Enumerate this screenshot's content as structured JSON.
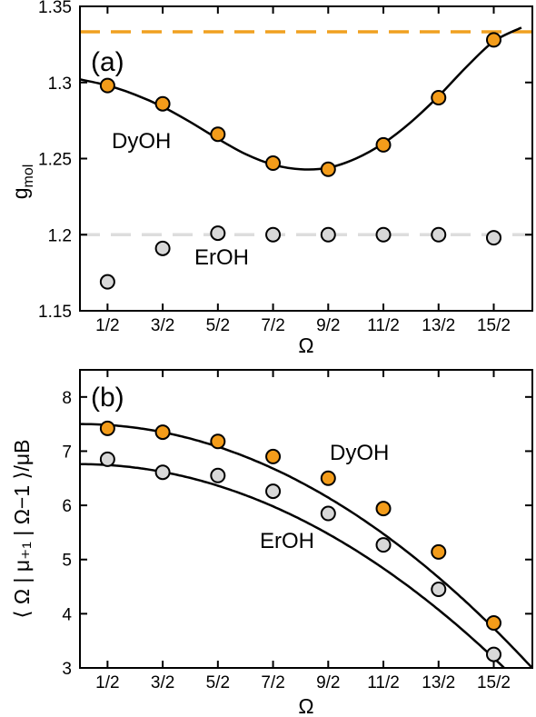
{
  "chart_data": [
    {
      "type": "scatter",
      "panel_label": "(a)",
      "xlabel": "Ω",
      "ylabel": "g",
      "ylabel_sub": "mol",
      "categories": [
        "1/2",
        "3/2",
        "5/2",
        "7/2",
        "9/2",
        "11/2",
        "13/2",
        "15/2"
      ],
      "x": [
        0.5,
        1.5,
        2.5,
        3.5,
        4.5,
        5.5,
        6.5,
        7.5
      ],
      "ylim": [
        1.15,
        1.35
      ],
      "yticks": [
        "1.15",
        "1.2",
        "1.25",
        "1.3",
        "1.35"
      ],
      "yticks_values": [
        1.15,
        1.2,
        1.25,
        1.3,
        1.35
      ],
      "reference_lines": [
        {
          "y": 1.3333,
          "color": "#F0A020",
          "style": "dashed"
        },
        {
          "y": 1.2,
          "color": "#DDDDDD",
          "style": "dashed"
        }
      ],
      "series": [
        {
          "name": "DyOH",
          "color": "#F39C1A",
          "values": [
            1.298,
            1.286,
            1.266,
            1.247,
            1.243,
            1.259,
            1.29,
            1.328
          ],
          "fit_curve": true
        },
        {
          "name": "ErOH",
          "color": "#D8D8D8",
          "values": [
            1.169,
            1.191,
            1.201,
            1.2,
            1.2,
            1.2,
            1.2,
            1.198
          ],
          "fit_curve": false
        }
      ],
      "fit_dyoh": {
        "x": [
          0.0,
          0.5,
          1.0,
          1.5,
          2.0,
          2.5,
          3.0,
          3.5,
          4.0,
          4.5,
          5.0,
          5.5,
          6.0,
          6.5,
          7.0,
          7.5,
          8.0
        ],
        "y": [
          1.302,
          1.298,
          1.292,
          1.284,
          1.274,
          1.263,
          1.253,
          1.246,
          1.243,
          1.244,
          1.25,
          1.26,
          1.274,
          1.291,
          1.31,
          1.327,
          1.336
        ]
      }
    },
    {
      "type": "scatter",
      "panel_label": "(b)",
      "xlabel": "Ω",
      "ylabel": "⟨ Ω | μ₊₁ | Ω−1 ⟩/μB",
      "categories": [
        "1/2",
        "3/2",
        "5/2",
        "7/2",
        "9/2",
        "11/2",
        "13/2",
        "15/2"
      ],
      "x": [
        0.5,
        1.5,
        2.5,
        3.5,
        4.5,
        5.5,
        6.5,
        7.5
      ],
      "ylim": [
        3,
        8.5
      ],
      "yticks": [
        "3",
        "4",
        "5",
        "6",
        "7",
        "8"
      ],
      "yticks_values": [
        3,
        4,
        5,
        6,
        7,
        8
      ],
      "series": [
        {
          "name": "DyOH",
          "color": "#F39C1A",
          "values": [
            7.42,
            7.35,
            7.18,
            6.9,
            6.5,
            5.94,
            5.14,
            3.83
          ],
          "fit_curve": true
        },
        {
          "name": "ErOH",
          "color": "#D8D8D8",
          "values": [
            6.85,
            6.61,
            6.55,
            6.26,
            5.85,
            5.27,
            4.45,
            3.25
          ],
          "fit_curve": true
        }
      ],
      "fit_dyoh": {
        "a": 7.5,
        "b": 0.067
      },
      "fit_eroh": {
        "a": 6.76,
        "b": 0.0636
      }
    }
  ]
}
